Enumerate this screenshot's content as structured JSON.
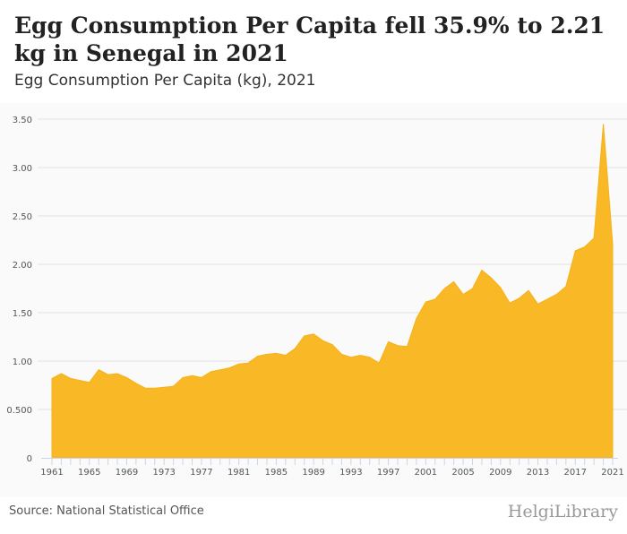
{
  "header": {
    "title": "Egg Consumption Per Capita fell 35.9% to 2.21 kg in Senegal in 2021",
    "subtitle": "Egg Consumption Per Capita (kg), 2021"
  },
  "footer": {
    "source": "Source: National Statistical Office",
    "logo": "HelgiLibrary"
  },
  "colors": {
    "fill": "#f9b825",
    "grid": "#e3e3e3"
  },
  "chart_data": {
    "type": "area",
    "title": "Egg Consumption Per Capita (kg), 2021",
    "xlabel": "",
    "ylabel": "",
    "ylim": [
      0,
      3.5
    ],
    "yticks": [
      "0",
      "0.500",
      "1.00",
      "1.50",
      "2.00",
      "2.50",
      "3.00",
      "3.50"
    ],
    "ytick_values": [
      0,
      0.5,
      1,
      1.5,
      2,
      2.5,
      3,
      3.5
    ],
    "xtick_labels": [
      "1961",
      "1965",
      "1969",
      "1973",
      "1977",
      "1981",
      "1985",
      "1989",
      "1993",
      "1997",
      "2001",
      "2005",
      "2009",
      "2013",
      "2017",
      "2021"
    ],
    "x": [
      1961,
      1962,
      1963,
      1964,
      1965,
      1966,
      1967,
      1968,
      1969,
      1970,
      1971,
      1972,
      1973,
      1974,
      1975,
      1976,
      1977,
      1978,
      1979,
      1980,
      1981,
      1982,
      1983,
      1984,
      1985,
      1986,
      1987,
      1988,
      1989,
      1990,
      1991,
      1992,
      1993,
      1994,
      1995,
      1996,
      1997,
      1998,
      1999,
      2000,
      2001,
      2002,
      2003,
      2004,
      2005,
      2006,
      2007,
      2008,
      2009,
      2010,
      2011,
      2012,
      2013,
      2014,
      2015,
      2016,
      2017,
      2018,
      2019,
      2020,
      2021
    ],
    "values": [
      0.82,
      0.87,
      0.82,
      0.8,
      0.78,
      0.91,
      0.86,
      0.87,
      0.83,
      0.77,
      0.72,
      0.72,
      0.73,
      0.74,
      0.83,
      0.85,
      0.83,
      0.89,
      0.91,
      0.93,
      0.97,
      0.98,
      1.05,
      1.07,
      1.08,
      1.06,
      1.13,
      1.26,
      1.28,
      1.21,
      1.17,
      1.07,
      1.04,
      1.06,
      1.04,
      0.98,
      1.2,
      1.16,
      1.15,
      1.44,
      1.61,
      1.64,
      1.75,
      1.82,
      1.69,
      1.75,
      1.94,
      1.86,
      1.76,
      1.6,
      1.65,
      1.73,
      1.59,
      1.64,
      1.69,
      1.77,
      2.14,
      2.18,
      2.27,
      3.45,
      2.21
    ]
  }
}
